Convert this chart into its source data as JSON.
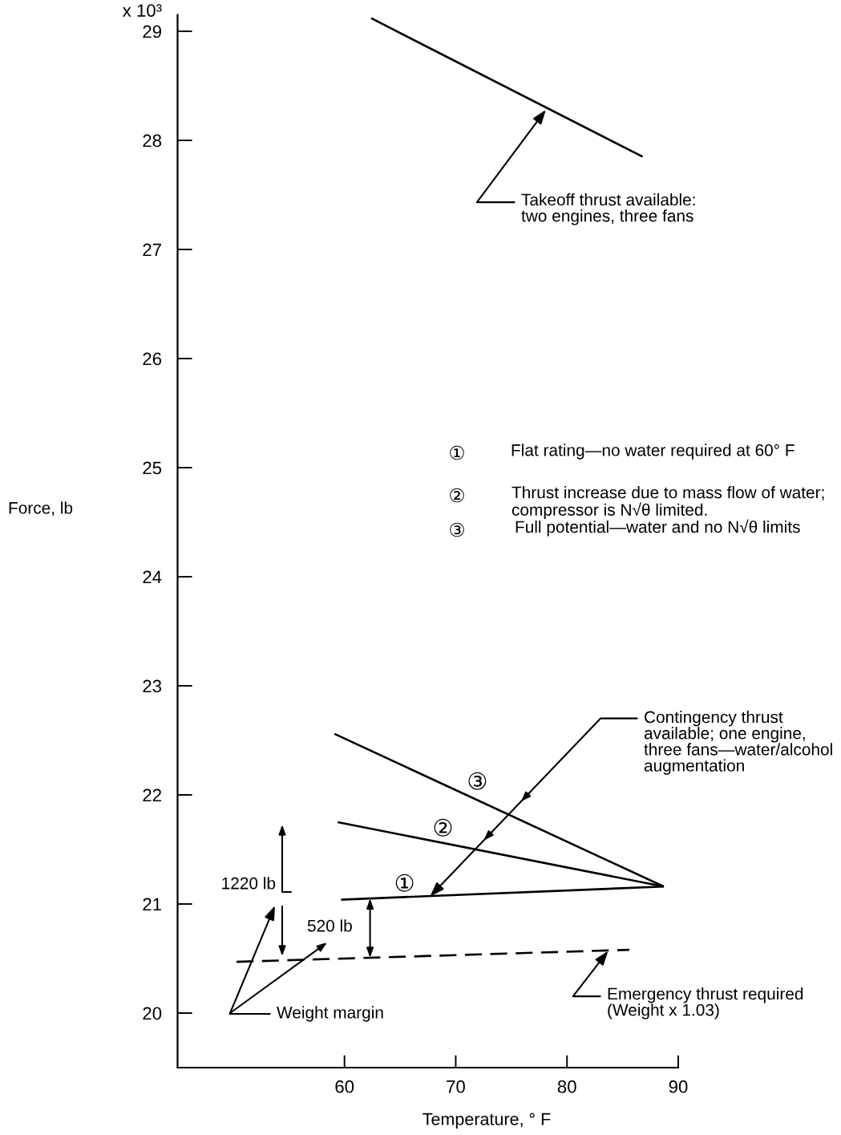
{
  "chart_data": {
    "type": "line",
    "xlabel": "Temperature, ° F",
    "ylabel": "Force, lb",
    "xlim": [
      45,
      90
    ],
    "xticks": [
      60,
      70,
      80,
      90
    ],
    "ylim": [
      19.5,
      29.15
    ],
    "yticks": [
      20,
      21,
      22,
      23,
      24,
      25,
      26,
      27,
      28,
      29
    ],
    "line_style": "solid",
    "series": [
      {
        "color": "#000000",
        "x": [
          62.4,
          86.8
        ],
        "values": [
          29.12,
          27.85
        ]
      },
      {
        "color": "#000000",
        "x": [
          59.7,
          88.7
        ],
        "values": [
          21.04,
          21.16
        ]
      },
      {
        "color": "#000000",
        "x": [
          59.4,
          88.7
        ],
        "values": [
          21.75,
          21.16
        ]
      },
      {
        "color": "#000000",
        "x": [
          59.1,
          88.7
        ],
        "values": [
          22.56,
          21.16
        ]
      },
      {
        "color": "#000000",
        "line_style": "dashed",
        "x": [
          50.3,
          85.6
        ],
        "values": [
          20.47,
          20.58
        ]
      }
    ],
    "annotations": [
      {
        "text": "Takeoff thrust available:\ntwo engines, three fans",
        "x": 78.1,
        "y": 28.28
      },
      "①",
      "Flat rating—no water required at 60° F",
      "②",
      "Thrust increase due to mass flow of water;\ncompressor is N√θ limited.",
      "③",
      "Full potential—water and no N√θ limits",
      {
        "text": "Contingency thrust\navailable; one engine,\nthree fans—water/alcohol\naugmentation",
        "x": 67.7,
        "y": 21.07
      },
      {
        "text": "Emergency thrust required\n(Weight x 1.03)",
        "x": 83.7,
        "y": 20.57
      },
      "1220 lb",
      {
        "text": "520 lb",
        "x": 62.3,
        "y": 21.05
      },
      "Weight margin",
      "x 10³",
      {
        "text": "③",
        "x": 71.94,
        "y": 21.95
      },
      {
        "text": "②",
        "x": 68.85,
        "y": 21.56
      },
      {
        "text": "①",
        "x": 65.4,
        "y": 21.06
      }
    ]
  }
}
